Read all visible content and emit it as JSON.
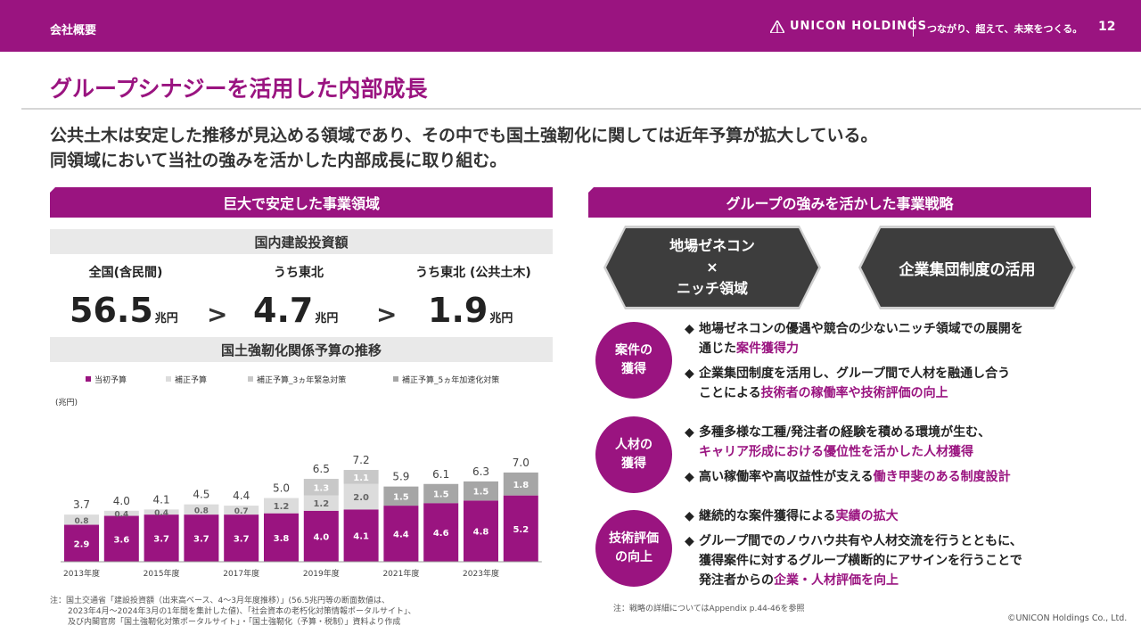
{
  "header": {
    "section": "会社概要",
    "logo_text": "UNICON HOLDINGS",
    "tagline": "つながり、超えて、未来をつくる。",
    "page_number": "12"
  },
  "title": "グループシナジーを活用した内部成長",
  "lead": {
    "line1": "公共土木は安定した推移が見込める領域であり、その中でも国土強靭化に関しては近年予算が拡大している。",
    "line2": "同領域において当社の強みを活かした内部成長に取り組む。"
  },
  "left": {
    "band_title": "巨大で安定した事業領域",
    "investment_title": "国内建設投資額",
    "metrics": [
      {
        "label": "全国(含民間)",
        "value": "56.5",
        "unit": "兆円"
      },
      {
        "label": "うち東北",
        "value": "4.7",
        "unit": "兆円"
      },
      {
        "label": "うち東北 (公共土木)",
        "value": "1.9",
        "unit": "兆円"
      }
    ],
    "chevron": ">",
    "budget_title": "国土強靭化関係予算の推移"
  },
  "chart_data": {
    "type": "bar",
    "stacked": true,
    "ylabel": "(兆円)",
    "categories": [
      "2013",
      "2014",
      "2015",
      "2016",
      "2017",
      "2018",
      "2019",
      "2020",
      "2021",
      "2022",
      "2023",
      "2024"
    ],
    "x_tick_labels": [
      "2013年度",
      "",
      "2015年度",
      "",
      "2017年度",
      "",
      "2019年度",
      "",
      "2021年度",
      "",
      "2023年度",
      ""
    ],
    "series": [
      {
        "name": "当初予算",
        "color": "#9a1480",
        "values": [
          2.9,
          3.6,
          3.7,
          3.7,
          3.7,
          3.8,
          4.0,
          4.1,
          4.4,
          4.6,
          4.8,
          5.2
        ]
      },
      {
        "name": "補正予算",
        "color": "#dcdcdc",
        "values": [
          0.8,
          0.4,
          0.4,
          0.8,
          0.7,
          1.2,
          1.2,
          2.0,
          0,
          0,
          0,
          0
        ]
      },
      {
        "name": "補正予算_3ヵ年緊急対策",
        "color": "#c8c8c8",
        "values": [
          0,
          0,
          0,
          0,
          0,
          0,
          1.3,
          1.1,
          0,
          0,
          0,
          0
        ]
      },
      {
        "name": "補正予算_5ヵ年加速化対策",
        "color": "#a6a6a6",
        "values": [
          0,
          0,
          0,
          0,
          0,
          0,
          0,
          0,
          1.5,
          1.5,
          1.5,
          1.8
        ]
      }
    ],
    "totals": [
      "3.7",
      "4.0",
      "4.1",
      "4.5",
      "4.4",
      "5.0",
      "6.5",
      "7.2",
      "5.9",
      "6.1",
      "6.3",
      "7.0"
    ],
    "ylim": [
      0,
      8
    ]
  },
  "notes": {
    "left": [
      "注：国土交通省「建設投資額（出来高ベース、4～3月年度推移）」(56.5兆円等の断面数値は、",
      "2023年4月～2024年3月の1年間を集計した値)、「社会資本の老朽化対策情報ポータルサイト」、",
      "及び内閣官房「国土強靭化対策ポータルサイト」・「国土強靭化（予算・税制）」資料より作成"
    ],
    "right": "注：戦略の詳細についてはAppendix p.44-46を参照",
    "copyright": "©UNICON Holdings Co., Ltd."
  },
  "right": {
    "band_title": "グループの強みを活かした事業戦略",
    "strength1": {
      "line1": "地場ゼネコン",
      "line2": "×",
      "line3": "ニッチ領域"
    },
    "strength2": "企業集団制度の活用",
    "circles": [
      {
        "line1": "案件の",
        "line2": "獲得"
      },
      {
        "line1": "人材の",
        "line2": "獲得"
      },
      {
        "line1": "技術評価",
        "line2": "の向上"
      }
    ],
    "bullet_marker": "◆",
    "bullets": {
      "b1": {
        "a": "地場ゼネコンの優遇や競合の少ないニッチ領域での展開を",
        "b": "通じた",
        "hl": "案件獲得力"
      },
      "b2": {
        "a": "企業集団制度を活用し、グループ間で人材を融通し合う",
        "b": "ことによる",
        "hl": "技術者の稼働率や技術評価の向上"
      },
      "b3": {
        "a": "多種多様な工種/発注者の経験を積める環境が生む、",
        "hl": "キャリア形成における優位性を活かした人材獲得"
      },
      "b4": {
        "a": "高い稼働率や高収益性が支える",
        "hl": "働き甲斐のある制度設計"
      },
      "b5": {
        "a": "継続的な案件獲得による",
        "hl": "実績の拡大"
      },
      "b6": {
        "a": "グループ間でのノウハウ共有や人材交流を行うとともに、",
        "b": "獲得案件に対するグループ横断的にアサインを行うことで",
        "c": "発注者からの",
        "hl": "企業・人材評価を向上"
      }
    }
  }
}
